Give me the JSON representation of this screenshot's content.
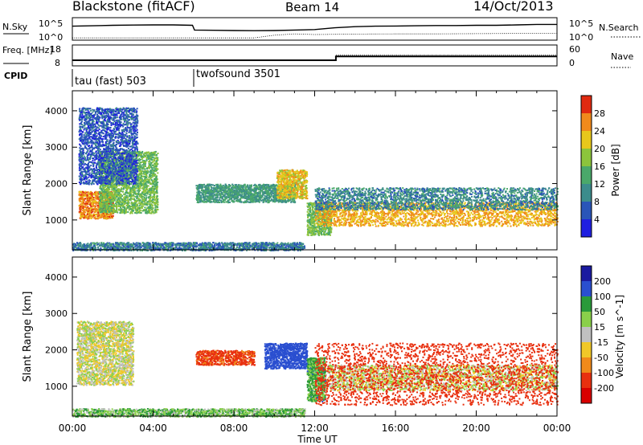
{
  "chart_data": [
    {
      "type": "line",
      "header": {
        "radar": "Blackstone (fitACF)",
        "beam": "Beam 14",
        "date": "14/Oct/2013"
      },
      "left_label": "N.Sky",
      "right_label": "N.Search",
      "yticks_left": [
        "10^5",
        "10^0"
      ],
      "yticks_right": [
        "10^5",
        "10^0"
      ],
      "series": [
        {
          "name": "N.Sky",
          "x": [
            0,
            1,
            2,
            3,
            4,
            5,
            5.95,
            6.05,
            7,
            8,
            9,
            10,
            11,
            12,
            13,
            14,
            15,
            16,
            17,
            18,
            19,
            20,
            21,
            22,
            23,
            24
          ],
          "values": [
            0.62,
            0.64,
            0.66,
            0.67,
            0.68,
            0.68,
            0.66,
            0.45,
            0.44,
            0.43,
            0.42,
            0.43,
            0.45,
            0.47,
            0.55,
            0.6,
            0.62,
            0.63,
            0.64,
            0.65,
            0.65,
            0.66,
            0.66,
            0.68,
            0.7,
            0.7
          ]
        },
        {
          "name": "N.Search",
          "x": [
            0,
            6,
            9,
            10,
            11,
            12,
            13,
            14,
            16,
            18,
            20,
            22,
            24
          ],
          "values": [
            0.1,
            0.1,
            0.1,
            0.22,
            0.28,
            0.25,
            0.26,
            0.27,
            0.28,
            0.28,
            0.29,
            0.3,
            0.3
          ]
        }
      ]
    },
    {
      "type": "line",
      "left_label": "Freq. [MHz]",
      "right_label": "Nave",
      "yticks_left": [
        "18",
        "8"
      ],
      "yticks_right": [
        "60",
        "0"
      ],
      "series": [
        {
          "name": "Freq",
          "x": [
            0,
            13.05,
            13.05,
            24
          ],
          "values": [
            10.5,
            10.5,
            12.5,
            12.5
          ]
        },
        {
          "name": "Nave",
          "x": [
            0,
            13.05,
            13.05,
            24
          ],
          "values": [
            14,
            14,
            31,
            31
          ]
        }
      ]
    },
    {
      "type": "table",
      "label": "CPID",
      "entries": [
        {
          "start": 0,
          "name": "tau (fast) 503"
        },
        {
          "start": 6.0,
          "name": "twofsound 3501"
        }
      ]
    },
    {
      "type": "heatmap",
      "parameter": "power",
      "ylabel": "Slant Range [km]",
      "yticks": [
        1000,
        2000,
        3000,
        4000
      ],
      "ylim": [
        180,
        4550
      ],
      "xlim": [
        0,
        24
      ],
      "colorbar": {
        "label": "Power [dB]",
        "ticks": [
          4,
          8,
          12,
          16,
          20,
          24,
          28
        ],
        "range": [
          0,
          32
        ]
      },
      "features": [
        {
          "t0": 0.3,
          "t1": 2.0,
          "r0": 1050,
          "r1": 1800,
          "level": 26
        },
        {
          "t0": 1.3,
          "t1": 4.2,
          "r0": 1200,
          "r1": 2900,
          "level": 16
        },
        {
          "t0": 0.3,
          "t1": 3.2,
          "r0": 2000,
          "r1": 4100,
          "level": 6
        },
        {
          "t0": 0.0,
          "t1": 11.5,
          "r0": 180,
          "r1": 400,
          "level": 9
        },
        {
          "t0": 6.1,
          "t1": 11.0,
          "r0": 1500,
          "r1": 2000,
          "level": 12
        },
        {
          "t0": 10.1,
          "t1": 11.6,
          "r0": 1600,
          "r1": 2400,
          "level": 22
        },
        {
          "t0": 11.6,
          "t1": 12.8,
          "r0": 600,
          "r1": 1500,
          "level": 16
        },
        {
          "t0": 12.0,
          "t1": 24.0,
          "r0": 850,
          "r1": 1500,
          "level": 24
        },
        {
          "t0": 12.0,
          "t1": 24.0,
          "r0": 1300,
          "r1": 1900,
          "level": 10
        }
      ]
    },
    {
      "type": "heatmap",
      "parameter": "velocity",
      "ylabel": "Slant Range [km]",
      "yticks": [
        1000,
        2000,
        3000,
        4000
      ],
      "ylim": [
        180,
        4550
      ],
      "xlim": [
        0,
        24
      ],
      "xticks": [
        "00:00",
        "04:00",
        "08:00",
        "12:00",
        "16:00",
        "20:00",
        "00:00"
      ],
      "xlabel": "Time UT",
      "colorbar": {
        "label": "Velocity [m s^-1]",
        "ticks": [
          200,
          100,
          50,
          15,
          -15,
          -50,
          -100,
          -200
        ],
        "range": [
          -250,
          250
        ]
      },
      "features": [
        {
          "t0": 0.2,
          "t1": 3.0,
          "r0": 1050,
          "r1": 2800,
          "level": 0
        },
        {
          "t0": 0.0,
          "t1": 11.5,
          "r0": 180,
          "r1": 400,
          "level": 40
        },
        {
          "t0": 6.1,
          "t1": 9.0,
          "r0": 1600,
          "r1": 2000,
          "level": -120
        },
        {
          "t0": 9.5,
          "t1": 11.6,
          "r0": 1500,
          "r1": 2200,
          "level": 150
        },
        {
          "t0": 11.6,
          "t1": 12.5,
          "r0": 600,
          "r1": 1800,
          "level": 60
        },
        {
          "t0": 12.5,
          "t1": 24.0,
          "r0": 900,
          "r1": 1600,
          "level": 0
        },
        {
          "t0": 12.0,
          "t1": 24.0,
          "r0": 500,
          "r1": 2200,
          "level": -150
        }
      ]
    }
  ]
}
